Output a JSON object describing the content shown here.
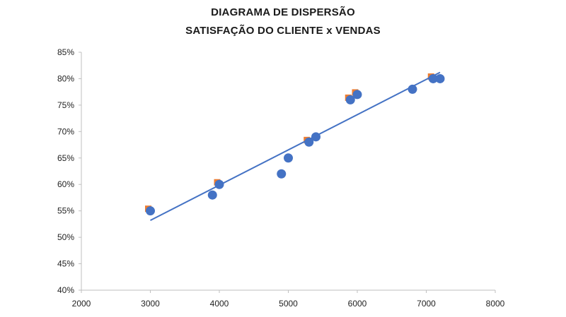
{
  "chart_data": {
    "type": "scatter",
    "title": "DIAGRAMA DE DISPERSÃO",
    "subtitle": "SATISFAÇÃO DO CLIENTE x VENDAS",
    "xlabel": "",
    "ylabel": "",
    "xlim": [
      2000,
      8000
    ],
    "ylim": [
      0.4,
      0.85
    ],
    "x_ticks": [
      2000,
      3000,
      4000,
      5000,
      6000,
      7000,
      8000
    ],
    "x_tick_labels": [
      "2000",
      "3000",
      "4000",
      "5000",
      "6000",
      "7000",
      "8000"
    ],
    "y_ticks": [
      0.4,
      0.45,
      0.5,
      0.55,
      0.6,
      0.65,
      0.7,
      0.75,
      0.8,
      0.85
    ],
    "y_tick_labels": [
      "40%",
      "45%",
      "50%",
      "55%",
      "60%",
      "65%",
      "70%",
      "75%",
      "80%",
      "85%"
    ],
    "grid": false,
    "legend": "none",
    "colors": {
      "points": "#4472C4",
      "secondary_markers": "#ED7D31",
      "trendline": "#4472C4",
      "axis": "#bfbfbf"
    },
    "series": [
      {
        "x": [
          3000,
          3900,
          4000,
          4900,
          5000,
          5300,
          5400,
          5900,
          6000,
          6800,
          7100,
          7200
        ],
        "y": [
          0.55,
          0.58,
          0.6,
          0.62,
          0.65,
          0.68,
          0.69,
          0.76,
          0.77,
          0.78,
          0.8,
          0.8
        ]
      }
    ],
    "secondary_markers": {
      "x": [
        3000,
        4000,
        5300,
        5900,
        6000,
        7100
      ],
      "y": [
        0.55,
        0.6,
        0.68,
        0.76,
        0.77,
        0.8
      ]
    },
    "trendline": {
      "type": "linear",
      "x": [
        3000,
        7200
      ],
      "y": [
        0.532,
        0.812
      ]
    }
  }
}
